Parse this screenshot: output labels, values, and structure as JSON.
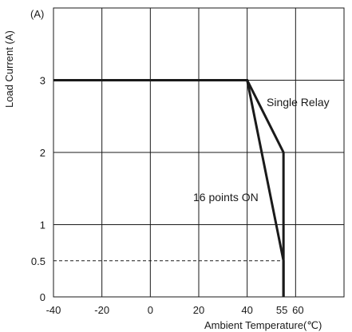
{
  "chart_data": {
    "type": "line",
    "title": "",
    "xlabel": "Ambient Temperature(℃)",
    "ylabel": "Load Current (A)",
    "y_unit": "(A)",
    "xlim": [
      -40,
      80
    ],
    "ylim": [
      0,
      4
    ],
    "x_ticks": [
      {
        "value": -40,
        "label": "-40"
      },
      {
        "value": -20,
        "label": "-20"
      },
      {
        "value": 0,
        "label": "0"
      },
      {
        "value": 20,
        "label": "20"
      },
      {
        "value": 40,
        "label": "40"
      },
      {
        "value": 55,
        "label": "55"
      },
      {
        "value": 60,
        "label": "60"
      }
    ],
    "y_ticks": [
      {
        "value": 0,
        "label": "0"
      },
      {
        "value": 0.5,
        "label": "0.5"
      },
      {
        "value": 1,
        "label": "1"
      },
      {
        "value": 2,
        "label": "2"
      },
      {
        "value": 3,
        "label": "3"
      }
    ],
    "vertical_gridlines": [
      -20,
      0,
      20,
      40,
      60
    ],
    "horizontal_gridlines": [
      1,
      2,
      3
    ],
    "grid": true,
    "series": [
      {
        "name": "Single Relay",
        "x": [
          -40,
          40,
          55,
          55
        ],
        "y": [
          3,
          3,
          2,
          0
        ]
      },
      {
        "name": "16 points ON",
        "x": [
          -40,
          40,
          55,
          55
        ],
        "y": [
          3,
          3,
          0.5,
          0
        ]
      }
    ],
    "reference_lines": [
      {
        "axis": "y",
        "value": 0.5,
        "style": "dashed",
        "x_from": -40,
        "x_to": 55
      }
    ],
    "colors": {
      "line": "#1a1a1a",
      "grid": "#1a1a1a",
      "background": "#ffffff"
    }
  }
}
